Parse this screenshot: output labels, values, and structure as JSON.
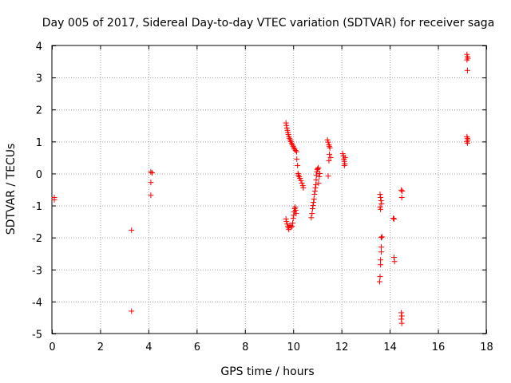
{
  "chart_data": {
    "type": "scatter",
    "title": "Day 005 of 2017, Sidereal Day-to-day VTEC variation (SDTVAR) for receiver saga",
    "xlabel": "GPS time / hours",
    "ylabel": "SDTVAR / TECUs",
    "xlim": [
      0,
      18
    ],
    "ylim": [
      -5,
      4
    ],
    "xticks": [
      0,
      2,
      4,
      6,
      8,
      10,
      12,
      14,
      16,
      18
    ],
    "yticks": [
      -5,
      -4,
      -3,
      -2,
      -1,
      0,
      1,
      2,
      3,
      4
    ],
    "grid": true,
    "marker": "plus",
    "series_color": "#ff0000",
    "points": [
      [
        0.1,
        -0.75
      ],
      [
        0.1,
        -0.82
      ],
      [
        3.3,
        -1.77
      ],
      [
        3.3,
        -4.3
      ],
      [
        4.1,
        0.05
      ],
      [
        4.15,
        0.02
      ],
      [
        4.1,
        -0.28
      ],
      [
        4.1,
        -0.68
      ],
      [
        9.7,
        1.58
      ],
      [
        9.72,
        1.5
      ],
      [
        9.74,
        1.42
      ],
      [
        9.76,
        1.35
      ],
      [
        9.78,
        1.28
      ],
      [
        9.8,
        1.22
      ],
      [
        9.82,
        1.15
      ],
      [
        9.85,
        1.1
      ],
      [
        9.88,
        1.05
      ],
      [
        9.9,
        1.0
      ],
      [
        9.93,
        0.95
      ],
      [
        9.96,
        0.9
      ],
      [
        10.0,
        0.85
      ],
      [
        10.03,
        0.8
      ],
      [
        10.06,
        0.76
      ],
      [
        10.1,
        0.72
      ],
      [
        10.14,
        0.68
      ],
      [
        10.15,
        0.45
      ],
      [
        10.18,
        0.25
      ],
      [
        10.2,
        0.0
      ],
      [
        10.22,
        -0.05
      ],
      [
        10.25,
        -0.1
      ],
      [
        10.28,
        -0.15
      ],
      [
        10.32,
        -0.22
      ],
      [
        10.36,
        -0.3
      ],
      [
        10.4,
        -0.38
      ],
      [
        10.42,
        -0.45
      ],
      [
        9.7,
        -1.42
      ],
      [
        9.72,
        -1.5
      ],
      [
        9.75,
        -1.58
      ],
      [
        9.78,
        -1.65
      ],
      [
        9.8,
        -1.7
      ],
      [
        9.82,
        -1.75
      ],
      [
        9.86,
        -1.62
      ],
      [
        9.9,
        -1.68
      ],
      [
        9.95,
        -1.65
      ],
      [
        9.98,
        -1.55
      ],
      [
        10.0,
        -1.4
      ],
      [
        10.02,
        -1.3
      ],
      [
        10.04,
        -1.2
      ],
      [
        10.06,
        -1.1
      ],
      [
        10.08,
        -1.05
      ],
      [
        10.1,
        -1.15
      ],
      [
        10.12,
        -1.25
      ],
      [
        10.75,
        -1.38
      ],
      [
        10.78,
        -1.25
      ],
      [
        10.8,
        -1.1
      ],
      [
        10.82,
        -1.0
      ],
      [
        10.84,
        -0.9
      ],
      [
        10.86,
        -0.8
      ],
      [
        10.88,
        -0.65
      ],
      [
        10.9,
        -0.55
      ],
      [
        10.92,
        -0.45
      ],
      [
        10.94,
        -0.35
      ],
      [
        10.95,
        -0.2
      ],
      [
        10.96,
        -0.05
      ],
      [
        10.98,
        0.05
      ],
      [
        11.0,
        0.12
      ],
      [
        11.02,
        0.15
      ],
      [
        11.04,
        0.18
      ],
      [
        11.05,
        -0.3
      ],
      [
        11.08,
        -0.1
      ],
      [
        11.1,
        0.0
      ],
      [
        11.42,
        1.05
      ],
      [
        11.45,
        0.98
      ],
      [
        11.48,
        0.9
      ],
      [
        11.5,
        0.85
      ],
      [
        11.52,
        0.8
      ],
      [
        11.55,
        0.5
      ],
      [
        11.48,
        0.4
      ],
      [
        11.5,
        0.6
      ],
      [
        11.45,
        -0.08
      ],
      [
        12.05,
        0.62
      ],
      [
        12.08,
        0.55
      ],
      [
        12.1,
        0.45
      ],
      [
        12.12,
        0.38
      ],
      [
        12.14,
        0.3
      ],
      [
        12.15,
        0.5
      ],
      [
        12.12,
        0.25
      ],
      [
        13.6,
        -0.65
      ],
      [
        13.62,
        -0.75
      ],
      [
        13.64,
        -0.85
      ],
      [
        13.66,
        -0.95
      ],
      [
        13.6,
        -1.05
      ],
      [
        13.62,
        -1.12
      ],
      [
        13.65,
        -2.0
      ],
      [
        13.68,
        -1.98
      ],
      [
        13.65,
        -2.3
      ],
      [
        13.65,
        -2.45
      ],
      [
        13.62,
        -2.7
      ],
      [
        13.62,
        -2.85
      ],
      [
        13.6,
        -3.22
      ],
      [
        13.58,
        -3.38
      ],
      [
        14.15,
        -1.4
      ],
      [
        14.18,
        -1.42
      ],
      [
        14.18,
        -2.62
      ],
      [
        14.2,
        -2.75
      ],
      [
        14.48,
        -0.52
      ],
      [
        14.52,
        -0.55
      ],
      [
        14.5,
        -0.75
      ],
      [
        14.48,
        -4.35
      ],
      [
        14.5,
        -4.45
      ],
      [
        14.48,
        -4.55
      ],
      [
        14.5,
        -4.68
      ],
      [
        17.2,
        3.72
      ],
      [
        17.22,
        3.65
      ],
      [
        17.24,
        3.6
      ],
      [
        17.2,
        3.55
      ],
      [
        17.22,
        3.22
      ],
      [
        17.2,
        1.15
      ],
      [
        17.22,
        1.1
      ],
      [
        17.24,
        1.05
      ],
      [
        17.2,
        1.0
      ],
      [
        17.22,
        0.95
      ]
    ]
  }
}
